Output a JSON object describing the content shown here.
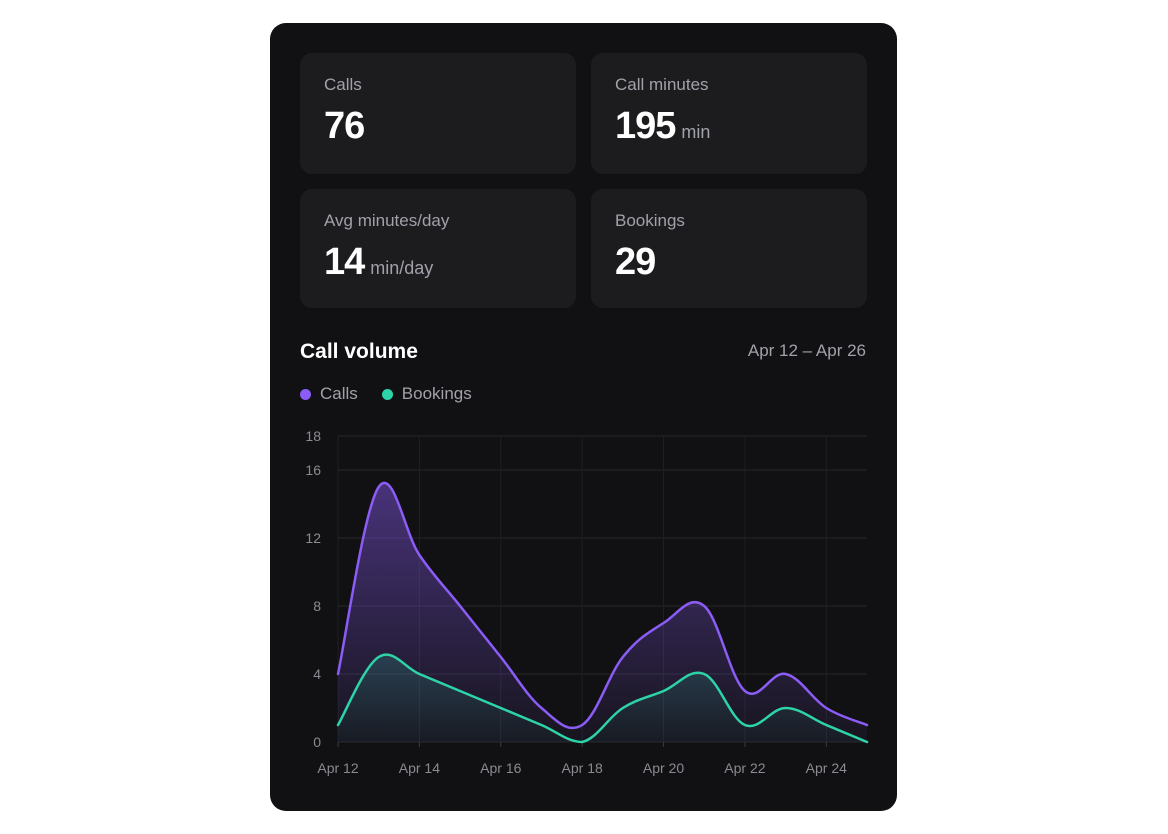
{
  "stats": [
    {
      "label": "Calls",
      "value": "76",
      "unit": ""
    },
    {
      "label": "Call minutes",
      "value": "195",
      "unit": "min"
    },
    {
      "label": "Avg minutes/day",
      "value": "14",
      "unit": "min/day"
    },
    {
      "label": "Bookings",
      "value": "29",
      "unit": ""
    }
  ],
  "chart": {
    "title": "Call volume",
    "range": "Apr 12 – Apr 26"
  },
  "chart_data": {
    "type": "area",
    "title": "Call volume",
    "x": [
      "Apr 12",
      "Apr 13",
      "Apr 14",
      "Apr 15",
      "Apr 16",
      "Apr 17",
      "Apr 18",
      "Apr 19",
      "Apr 20",
      "Apr 21",
      "Apr 22",
      "Apr 23",
      "Apr 24",
      "Apr 25"
    ],
    "x_ticks": [
      "Apr 12",
      "Apr 14",
      "Apr 16",
      "Apr 18",
      "Apr 20",
      "Apr 22",
      "Apr 24"
    ],
    "y_ticks": [
      0,
      4,
      8,
      12,
      16,
      18
    ],
    "ylim": [
      0,
      18
    ],
    "grid": true,
    "legend_position": "top-left",
    "series": [
      {
        "name": "Calls",
        "color": "#8b5cf6",
        "values": [
          4,
          15,
          11,
          8,
          5,
          2,
          1,
          5,
          7,
          8,
          3,
          4,
          2,
          1
        ]
      },
      {
        "name": "Bookings",
        "color": "#2dd4a8",
        "values": [
          1,
          5,
          4,
          3,
          2,
          1,
          0,
          2,
          3,
          4,
          1,
          2,
          1,
          0
        ]
      }
    ]
  }
}
